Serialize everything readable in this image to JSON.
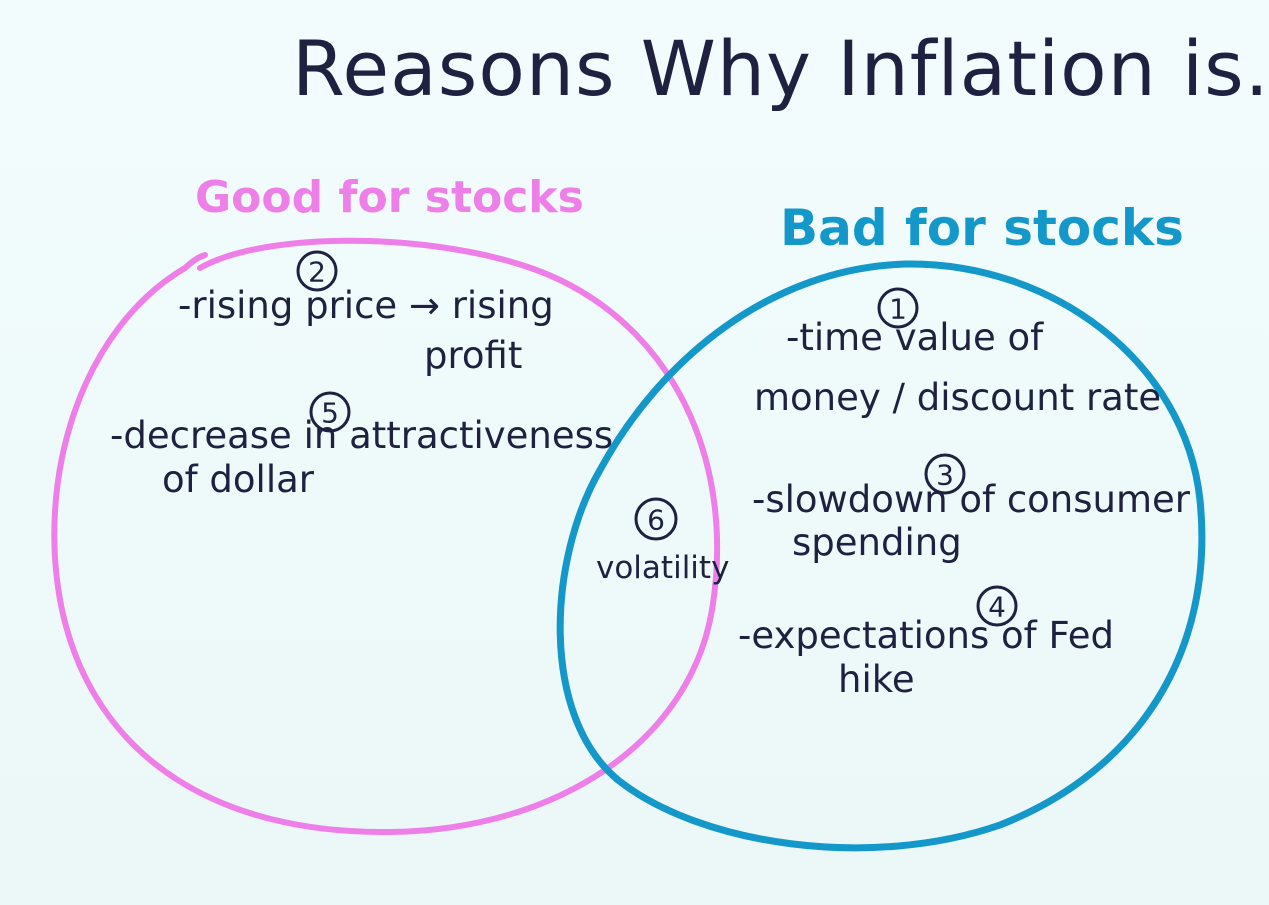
{
  "title": "Reasons Why Inflation is...",
  "colors": {
    "good": "#ee7fe8",
    "bad": "#1497c9",
    "ink": "#1e2140",
    "paper": "#f1fbfb"
  },
  "good_circle": {
    "heading": "Good for stocks",
    "items": [
      {
        "number": "2",
        "lines": [
          "-rising price → rising",
          "profit"
        ]
      },
      {
        "number": "5",
        "lines": [
          "-decrease in attractiveness",
          "of dollar"
        ]
      }
    ]
  },
  "overlap": {
    "number": "6",
    "label": "volatility"
  },
  "bad_circle": {
    "heading": "Bad for stocks",
    "items": [
      {
        "number": "1",
        "lines": [
          "-time value of",
          "money / discount rate"
        ]
      },
      {
        "number": "3",
        "lines": [
          "-slowdown of consumer",
          "spending"
        ]
      },
      {
        "number": "4",
        "lines": [
          "-expectations of Fed",
          "hike"
        ]
      }
    ]
  }
}
